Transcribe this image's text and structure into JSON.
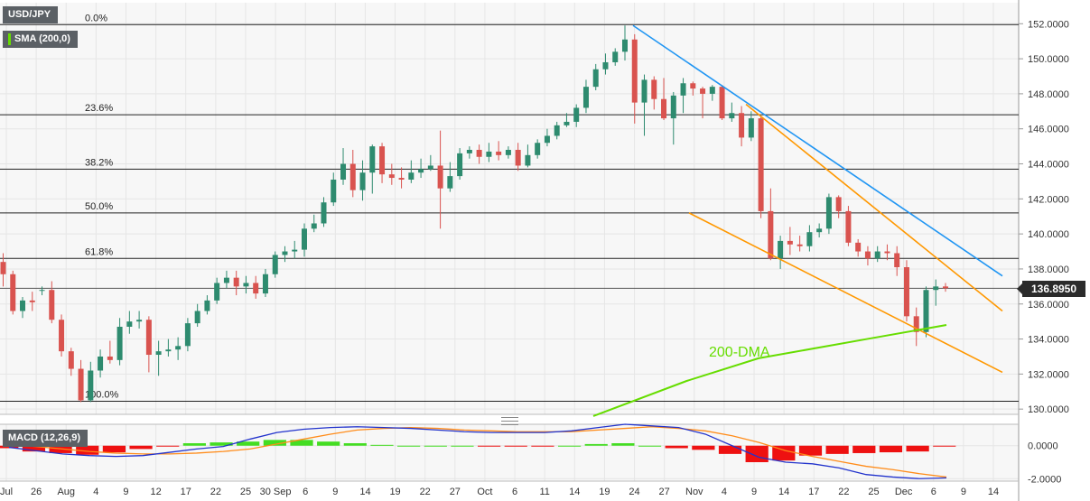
{
  "header": {
    "symbol": "USD/JPY",
    "sma_label": "SMA (200,0)",
    "macd_label": "MACD (12,26,9)"
  },
  "current_price": {
    "value": 136.895,
    "label": "136.8950"
  },
  "colors": {
    "up": "#2e8b6f",
    "down": "#d9534f",
    "blue_line": "#2196f3",
    "orange_line": "#ff9800",
    "dma_line": "#66dd00",
    "macd_line": "#2233cc",
    "signal_line": "#ff8c1a",
    "hist_pos": "#44dd22",
    "hist_neg": "#ee1111"
  },
  "chart_data": [
    {
      "type": "candlestick",
      "title": "USD/JPY",
      "indicator": "SMA (200,0)",
      "ylim": [
        129.7,
        153.2
      ],
      "y_ticks": [
        "130.0000",
        "132.0000",
        "134.0000",
        "136.0000",
        "138.0000",
        "140.0000",
        "142.0000",
        "144.0000",
        "146.0000",
        "148.0000",
        "150.0000",
        "152.0000"
      ],
      "x_labels": [
        "Jul",
        "26",
        "Aug",
        "4",
        "9",
        "12",
        "17",
        "22",
        "25",
        "30 Sep",
        "6",
        "9",
        "14",
        "19",
        "22",
        "27",
        "Oct",
        "6",
        "11",
        "14",
        "19",
        "24",
        "27",
        "Nov",
        "4",
        "9",
        "14",
        "17",
        "22",
        "25",
        "Dec",
        "6",
        "9",
        "14"
      ],
      "fibonacci": [
        {
          "label": "0.0%",
          "value": 151.95
        },
        {
          "label": "23.6%",
          "value": 146.8
        },
        {
          "label": "38.2%",
          "value": 143.7
        },
        {
          "label": "50.0%",
          "value": 141.2
        },
        {
          "label": "61.8%",
          "value": 138.6
        },
        {
          "label": "100.0%",
          "value": 130.45
        }
      ],
      "candles": [
        [
          138.4,
          137.7,
          138.9,
          137.0
        ],
        [
          137.7,
          135.6,
          137.9,
          135.4
        ],
        [
          135.6,
          136.2,
          136.4,
          135.2
        ],
        [
          136.2,
          136.1,
          136.7,
          135.6
        ],
        [
          136.8,
          136.8,
          137.0,
          136.5
        ],
        [
          136.8,
          135.1,
          137.3,
          134.9
        ],
        [
          135.1,
          133.3,
          135.4,
          133.0
        ],
        [
          133.3,
          132.3,
          133.5,
          131.9
        ],
        [
          132.3,
          130.5,
          132.8,
          130.4
        ],
        [
          130.5,
          132.2,
          132.7,
          130.4
        ],
        [
          132.2,
          133.0,
          133.4,
          131.8
        ],
        [
          133.0,
          132.8,
          133.9,
          132.6
        ],
        [
          132.8,
          134.7,
          135.2,
          132.5
        ],
        [
          134.7,
          135.0,
          135.6,
          134.3
        ],
        [
          135.0,
          135.1,
          135.6,
          134.6
        ],
        [
          135.1,
          133.1,
          135.3,
          132.1
        ],
        [
          133.1,
          133.3,
          133.9,
          131.9
        ],
        [
          133.3,
          133.4,
          134.0,
          133.0
        ],
        [
          133.4,
          133.6,
          134.1,
          132.8
        ],
        [
          133.6,
          134.9,
          135.2,
          133.3
        ],
        [
          134.9,
          135.6,
          136.0,
          134.7
        ],
        [
          135.6,
          136.2,
          136.5,
          135.4
        ],
        [
          136.2,
          137.2,
          137.5,
          136.0
        ],
        [
          137.2,
          137.5,
          137.9,
          136.9
        ],
        [
          137.5,
          137.0,
          137.9,
          136.5
        ],
        [
          137.0,
          137.2,
          137.6,
          136.6
        ],
        [
          137.2,
          136.6,
          137.6,
          136.3
        ],
        [
          136.6,
          137.7,
          138.0,
          136.4
        ],
        [
          137.7,
          138.8,
          139.0,
          137.5
        ],
        [
          138.8,
          139.0,
          139.3,
          138.4
        ],
        [
          139.0,
          139.1,
          139.6,
          138.6
        ],
        [
          139.1,
          140.3,
          140.6,
          138.7
        ],
        [
          140.3,
          140.6,
          141.1,
          140.1
        ],
        [
          140.6,
          141.8,
          142.1,
          140.4
        ],
        [
          141.8,
          143.1,
          143.5,
          141.6
        ],
        [
          143.1,
          144.0,
          144.9,
          142.8
        ],
        [
          144.0,
          142.5,
          144.8,
          142.1
        ],
        [
          142.5,
          143.5,
          144.2,
          141.9
        ],
        [
          143.5,
          145.0,
          145.1,
          142.3
        ],
        [
          145.0,
          143.4,
          145.2,
          142.9
        ],
        [
          143.4,
          143.2,
          144.0,
          142.8
        ],
        [
          143.2,
          143.1,
          143.8,
          142.6
        ],
        [
          143.1,
          143.5,
          144.2,
          142.9
        ],
        [
          143.5,
          143.7,
          144.3,
          143.2
        ],
        [
          143.7,
          143.9,
          144.5,
          143.6
        ],
        [
          143.9,
          142.6,
          145.9,
          140.3
        ],
        [
          142.6,
          143.3,
          144.1,
          142.4
        ],
        [
          143.3,
          144.6,
          144.9,
          143.1
        ],
        [
          144.6,
          144.8,
          145.0,
          144.3
        ],
        [
          144.8,
          144.4,
          145.1,
          144.0
        ],
        [
          144.4,
          144.7,
          145.2,
          144.1
        ],
        [
          144.7,
          144.5,
          145.3,
          144.2
        ],
        [
          144.5,
          144.8,
          145.0,
          144.3
        ],
        [
          144.8,
          143.9,
          145.2,
          143.6
        ],
        [
          143.9,
          144.5,
          145.1,
          143.8
        ],
        [
          144.5,
          145.2,
          145.4,
          144.3
        ],
        [
          145.2,
          145.6,
          146.0,
          145.0
        ],
        [
          145.6,
          146.2,
          146.4,
          145.4
        ],
        [
          146.2,
          146.4,
          146.9,
          146.1
        ],
        [
          146.4,
          147.2,
          147.4,
          146.1
        ],
        [
          147.2,
          148.4,
          148.8,
          146.9
        ],
        [
          148.4,
          149.4,
          149.7,
          148.2
        ],
        [
          149.4,
          149.8,
          150.3,
          149.1
        ],
        [
          149.8,
          150.4,
          150.6,
          149.6
        ],
        [
          150.4,
          151.1,
          151.9,
          149.9
        ],
        [
          151.1,
          147.5,
          151.4,
          146.3
        ],
        [
          147.5,
          148.8,
          149.1,
          145.6
        ],
        [
          148.8,
          147.7,
          149.0,
          147.1
        ],
        [
          147.7,
          146.6,
          148.9,
          146.5
        ],
        [
          146.6,
          147.9,
          148.1,
          145.1
        ],
        [
          147.9,
          148.6,
          148.9,
          146.9
        ],
        [
          148.6,
          148.3,
          148.7,
          147.9
        ],
        [
          148.3,
          148.0,
          148.4,
          146.6
        ],
        [
          148.0,
          148.4,
          148.5,
          147.6
        ],
        [
          148.4,
          146.6,
          148.5,
          146.5
        ],
        [
          146.6,
          146.9,
          147.5,
          146.4
        ],
        [
          146.9,
          145.5,
          147.3,
          145.0
        ],
        [
          145.5,
          146.6,
          147.0,
          145.3
        ],
        [
          146.6,
          141.3,
          146.7,
          140.9
        ],
        [
          141.3,
          138.6,
          142.6,
          138.5
        ],
        [
          138.6,
          139.6,
          139.9,
          138.0
        ],
        [
          139.6,
          139.4,
          140.4,
          138.8
        ],
        [
          139.4,
          139.3,
          139.9,
          139.0
        ],
        [
          139.3,
          140.1,
          140.5,
          139.0
        ],
        [
          140.1,
          140.3,
          140.6,
          139.8
        ],
        [
          140.3,
          142.1,
          142.3,
          140.0
        ],
        [
          142.1,
          141.3,
          142.2,
          140.9
        ],
        [
          141.3,
          139.5,
          141.6,
          139.3
        ],
        [
          139.5,
          139.0,
          139.7,
          138.7
        ],
        [
          139.0,
          138.6,
          139.3,
          138.2
        ],
        [
          138.6,
          139.0,
          139.3,
          138.4
        ],
        [
          139.0,
          138.9,
          139.4,
          138.5
        ],
        [
          138.9,
          138.1,
          139.3,
          137.6
        ],
        [
          138.1,
          135.3,
          138.5,
          135.0
        ],
        [
          135.3,
          134.4,
          135.8,
          133.6
        ],
        [
          134.4,
          136.8,
          137.0,
          134.1
        ],
        [
          136.8,
          137.0,
          137.4,
          135.9
        ],
        [
          137.0,
          136.9,
          137.2,
          136.7
        ]
      ],
      "trendlines": [
        {
          "color": "blue",
          "from": [
            151.9,
            "Oct 21"
          ],
          "to": [
            137.6,
            "Dec 14"
          ]
        },
        {
          "color": "orange",
          "from": [
            147.4,
            "Nov 9"
          ],
          "to": [
            135.6,
            "Dec 14"
          ]
        },
        {
          "color": "orange",
          "from": [
            141.2,
            "Oct 28"
          ],
          "to": [
            132.1,
            "Dec 14"
          ]
        }
      ],
      "dma_200": {
        "label": "200-DMA",
        "start": 129.6,
        "end": 134.8
      }
    },
    {
      "type": "macd",
      "title": "MACD (12,26,9)",
      "ylim": [
        -2.15,
        1.3
      ],
      "y_ticks": [
        "0.0000",
        "-2.0000"
      ],
      "macd": [
        -0.1,
        -0.3,
        -0.5,
        -0.6,
        -0.65,
        -0.6,
        -0.4,
        -0.2,
        -0.05,
        0.4,
        0.8,
        1.0,
        1.1,
        1.15,
        1.1,
        1.05,
        0.95,
        0.85,
        0.8,
        0.8,
        0.8,
        0.9,
        1.1,
        1.3,
        1.2,
        1.1,
        0.7,
        0.0,
        -0.7,
        -1.0,
        -1.1,
        -1.35,
        -1.75,
        -1.9,
        -2.0,
        -1.95
      ],
      "signal": [
        0.05,
        -0.05,
        -0.2,
        -0.35,
        -0.45,
        -0.5,
        -0.5,
        -0.45,
        -0.35,
        -0.2,
        0.1,
        0.4,
        0.7,
        0.95,
        1.05,
        1.1,
        1.05,
        0.95,
        0.9,
        0.85,
        0.85,
        0.85,
        0.95,
        1.05,
        1.15,
        1.05,
        0.9,
        0.6,
        0.2,
        -0.3,
        -0.65,
        -0.95,
        -1.25,
        -1.45,
        -1.7,
        -1.9
      ],
      "histogram": [
        -0.15,
        -0.35,
        -0.45,
        -0.55,
        -0.4,
        -0.2,
        -0.05,
        0.15,
        0.2,
        0.25,
        0.35,
        0.35,
        0.25,
        0.15,
        0.05,
        0.0,
        0.0,
        0.0,
        -0.05,
        -0.05,
        -0.05,
        0.0,
        0.1,
        0.15,
        0.0,
        -0.15,
        -0.25,
        -0.5,
        -1.0,
        -0.9,
        -0.6,
        -0.5,
        -0.45,
        -0.4,
        -0.35,
        -0.05
      ]
    }
  ],
  "annotations": {
    "dma_label": "200-DMA"
  }
}
